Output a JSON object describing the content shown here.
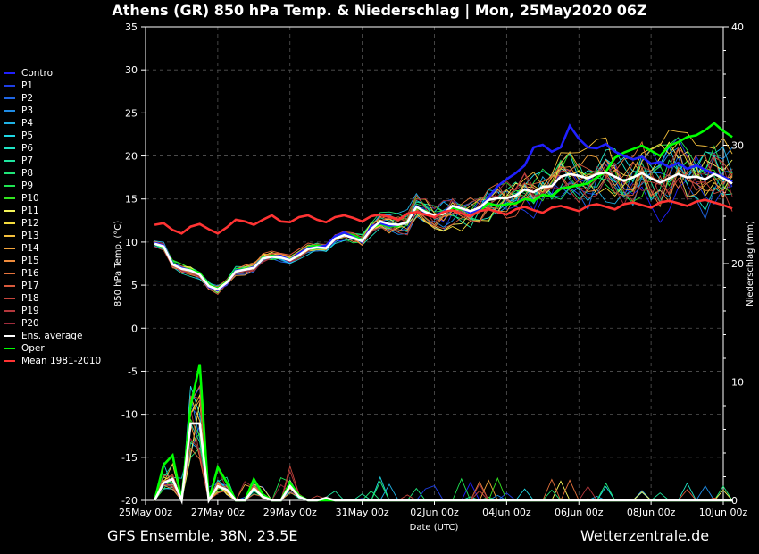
{
  "title": "Athens  (GR)  850 hPa Temp. & Niederschlag | Mon, 25May2020 06Z",
  "footer_left": "GFS Ensemble, 38N, 23.5E",
  "footer_right": "Wetterzentrale.de",
  "legend": [
    {
      "label": "Control",
      "color": "#2020ff"
    },
    {
      "label": "P1",
      "color": "#1f3fe6"
    },
    {
      "label": "P2",
      "color": "#1f66e6"
    },
    {
      "label": "P3",
      "color": "#1f8ce6"
    },
    {
      "label": "P4",
      "color": "#1fb3e6"
    },
    {
      "label": "P5",
      "color": "#1fd9e6"
    },
    {
      "label": "P6",
      "color": "#1fe6c6"
    },
    {
      "label": "P7",
      "color": "#1fe69f"
    },
    {
      "label": "P8",
      "color": "#1fe679"
    },
    {
      "label": "P9",
      "color": "#1fe652"
    },
    {
      "label": "P10",
      "color": "#33e61f"
    },
    {
      "label": "P11",
      "color": "#f5f55a"
    },
    {
      "label": "P12",
      "color": "#f5dc3c"
    },
    {
      "label": "P13",
      "color": "#f5c03c"
    },
    {
      "label": "P14",
      "color": "#f5a53c"
    },
    {
      "label": "P15",
      "color": "#f08c3c"
    },
    {
      "label": "P16",
      "color": "#e6733c"
    },
    {
      "label": "P17",
      "color": "#d95a3c"
    },
    {
      "label": "P18",
      "color": "#c8463c"
    },
    {
      "label": "P19",
      "color": "#b4373c"
    },
    {
      "label": "P20",
      "color": "#a02d3c"
    },
    {
      "label": "Ens. average",
      "color": "#ffffff"
    },
    {
      "label": "Oper",
      "color": "#00ff00"
    },
    {
      "label": "Mean 1981-2010",
      "color": "#ff3333"
    }
  ],
  "chart_data": {
    "type": "line",
    "xlabel": "Date (UTC)",
    "ylabel": "850 hPa Temp. (°C)",
    "y2label": "Niederschlag (mm)",
    "ylim": [
      -20,
      35
    ],
    "y2lim": [
      0,
      40
    ],
    "yticks": [
      -20,
      -15,
      -10,
      -5,
      0,
      5,
      10,
      15,
      20,
      25,
      30,
      35
    ],
    "y2ticks": [
      0,
      10,
      20,
      30,
      40
    ],
    "xticks": [
      "25May 00z",
      "27May 00z",
      "29May 00z",
      "31May 00z",
      "02Jun 00z",
      "04Jun 00z",
      "06Jun 00z",
      "08Jun 00z",
      "10Jun 00z"
    ],
    "xlim_hours": [
      0,
      384
    ],
    "grid": true,
    "step_hours": 6,
    "start_hour": 6,
    "temp_series": {
      "Oper": [
        9.8,
        9.4,
        7.6,
        7.0,
        6.8,
        6.4,
        5.0,
        4.6,
        5.4,
        6.8,
        6.9,
        7.0,
        8.2,
        8.4,
        8.3,
        8.0,
        8.6,
        9.4,
        9.6,
        9.5,
        10.6,
        11.0,
        10.8,
        10.2,
        11.6,
        12.1,
        11.8,
        11.9,
        12.4,
        14.0,
        13.6,
        13.0,
        13.3,
        14.0,
        13.8,
        13.5,
        13.6,
        14.5,
        14.2,
        14.4,
        14.5,
        15.0,
        14.8,
        15.5,
        15.3,
        16.2,
        16.4,
        16.6,
        16.8,
        17.5,
        18.2,
        19.8,
        20.4,
        20.8,
        21.2,
        20.6,
        20.0,
        21.2,
        21.6,
        22.2,
        22.4,
        23.0,
        23.8,
        22.9,
        22.2
      ],
      "Control": [
        9.9,
        9.6,
        7.5,
        7.0,
        6.7,
        6.2,
        4.8,
        4.4,
        5.2,
        6.7,
        6.8,
        7.1,
        8.1,
        8.3,
        8.4,
        7.9,
        8.7,
        9.3,
        9.4,
        9.6,
        10.7,
        11.1,
        10.6,
        10.0,
        11.8,
        12.2,
        11.9,
        12.0,
        12.3,
        14.2,
        13.4,
        13.1,
        13.5,
        14.2,
        13.9,
        13.4,
        13.8,
        15.2,
        16.5,
        17.3,
        18.0,
        18.9,
        21.0,
        21.3,
        20.5,
        21.0,
        23.5,
        22.0,
        21.0,
        20.9,
        21.4,
        20.5,
        20.0,
        19.6,
        19.9,
        19.1,
        19.3,
        18.7,
        19.2,
        18.5,
        18.9,
        18.4,
        17.9,
        17.6,
        17.0
      ],
      "Ens. average": [
        9.8,
        9.5,
        7.4,
        6.9,
        6.7,
        6.2,
        4.9,
        4.5,
        5.3,
        6.6,
        6.8,
        7.0,
        8.1,
        8.3,
        8.2,
        7.9,
        8.5,
        9.2,
        9.4,
        9.3,
        10.4,
        10.8,
        10.5,
        10.1,
        11.5,
        12.4,
        12.1,
        12.0,
        12.3,
        14.1,
        13.5,
        13.1,
        13.3,
        14.2,
        13.9,
        13.6,
        14.0,
        14.9,
        15.1,
        15.1,
        15.4,
        16.1,
        15.8,
        16.4,
        16.5,
        17.6,
        17.9,
        17.7,
        17.4,
        17.9,
        18.1,
        17.6,
        17.1,
        17.5,
        18.0,
        17.4,
        16.9,
        17.4,
        17.9,
        17.5,
        17.6,
        17.3,
        17.9,
        17.4,
        16.8
      ],
      "Mean 1981-2010": [
        12.0,
        12.2,
        11.4,
        11.0,
        11.8,
        12.1,
        11.5,
        11.0,
        11.7,
        12.6,
        12.4,
        12.0,
        12.6,
        13.1,
        12.4,
        12.3,
        12.9,
        13.1,
        12.6,
        12.3,
        12.9,
        13.1,
        12.8,
        12.4,
        13.0,
        13.2,
        12.9,
        12.6,
        13.3,
        13.5,
        13.2,
        12.9,
        13.5,
        13.7,
        13.3,
        13.0,
        13.6,
        13.8,
        13.5,
        13.2,
        13.8,
        14.1,
        13.7,
        13.4,
        14.0,
        14.2,
        13.9,
        13.6,
        14.2,
        14.4,
        14.1,
        13.8,
        14.4,
        14.6,
        14.3,
        14.0,
        14.6,
        14.8,
        14.5,
        14.2,
        14.7,
        14.9,
        14.6,
        14.3,
        13.9
      ]
    },
    "precip_series": {
      "Oper": [
        0,
        3.0,
        3.8,
        0,
        8.0,
        11.5,
        0,
        2.8,
        1.5,
        0,
        0,
        1.8,
        0.5,
        0,
        0,
        1.5,
        0.4,
        0,
        0,
        0,
        0,
        0,
        0,
        0,
        0,
        0,
        0,
        0,
        0,
        0,
        0,
        0,
        0,
        0,
        0,
        0,
        0,
        0,
        0,
        0,
        0,
        0,
        0,
        0,
        0,
        0,
        0,
        0,
        0,
        0,
        0,
        0,
        0,
        0,
        0,
        0,
        0,
        0,
        0,
        0,
        0,
        0,
        0,
        0,
        0
      ],
      "Ens. average": [
        0,
        1.5,
        1.8,
        0,
        6.5,
        6.5,
        0,
        1.2,
        0.9,
        0,
        0,
        1.0,
        0.3,
        0,
        0,
        1.2,
        0.3,
        0,
        0,
        0.2,
        0,
        0,
        0,
        0,
        0,
        0,
        0,
        0,
        0,
        0,
        0,
        0,
        0,
        0,
        0,
        0,
        0,
        0,
        0,
        0,
        0,
        0,
        0,
        0,
        0,
        0,
        0,
        0,
        0,
        0,
        0,
        0,
        0,
        0,
        0,
        0,
        0,
        0,
        0,
        0,
        0,
        0,
        0,
        0,
        0
      ]
    }
  }
}
